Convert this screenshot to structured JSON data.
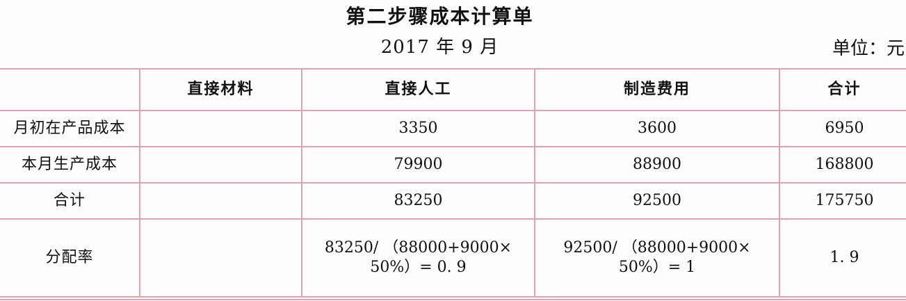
{
  "header": {
    "title": "第二步骤成本计算单",
    "date": "2017 年 9 月",
    "unit": "单位：元"
  },
  "table": {
    "columns": [
      "",
      "直接材料",
      "直接人工",
      "制造费用",
      "合计"
    ],
    "rows": [
      {
        "label": "月初在产品成本",
        "direct_materials": "",
        "direct_labor": "3350",
        "manufacturing_overhead": "3600",
        "total": "6950"
      },
      {
        "label": "本月生产成本",
        "direct_materials": "",
        "direct_labor": "79900",
        "manufacturing_overhead": "88900",
        "total": "168800"
      },
      {
        "label": "合计",
        "direct_materials": "",
        "direct_labor": "83250",
        "manufacturing_overhead": "92500",
        "total": "175750"
      },
      {
        "label": "分配率",
        "direct_materials": "",
        "direct_labor_line1": "83250/ （88000+9000×",
        "direct_labor_line2": "50%）= 0. 9",
        "manufacturing_overhead_line1": "92500/ （88000+9000×",
        "manufacturing_overhead_line2": "50%）= 1",
        "total": "1. 9"
      }
    ]
  },
  "colors": {
    "grid": "#d9a3b0",
    "background": "#fdfcfc",
    "text": "#111111"
  }
}
